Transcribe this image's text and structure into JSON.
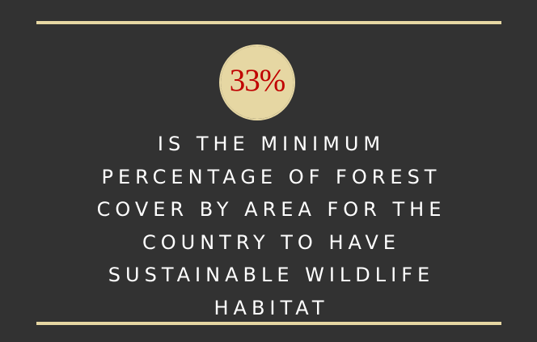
{
  "badge": {
    "value": "33%",
    "colors": {
      "fill": "#e6d7a3",
      "text": "#c00000"
    }
  },
  "statement": {
    "lines": [
      "IS THE MINIMUM",
      "PERCENTAGE OF FOREST",
      "COVER BY AREA FOR THE",
      "COUNTRY TO HAVE",
      "SUSTAINABLE WILDLIFE",
      "HABITAT"
    ]
  },
  "colors": {
    "background": "#323232",
    "rule": "#e6d7a3",
    "text": "#ffffff"
  }
}
